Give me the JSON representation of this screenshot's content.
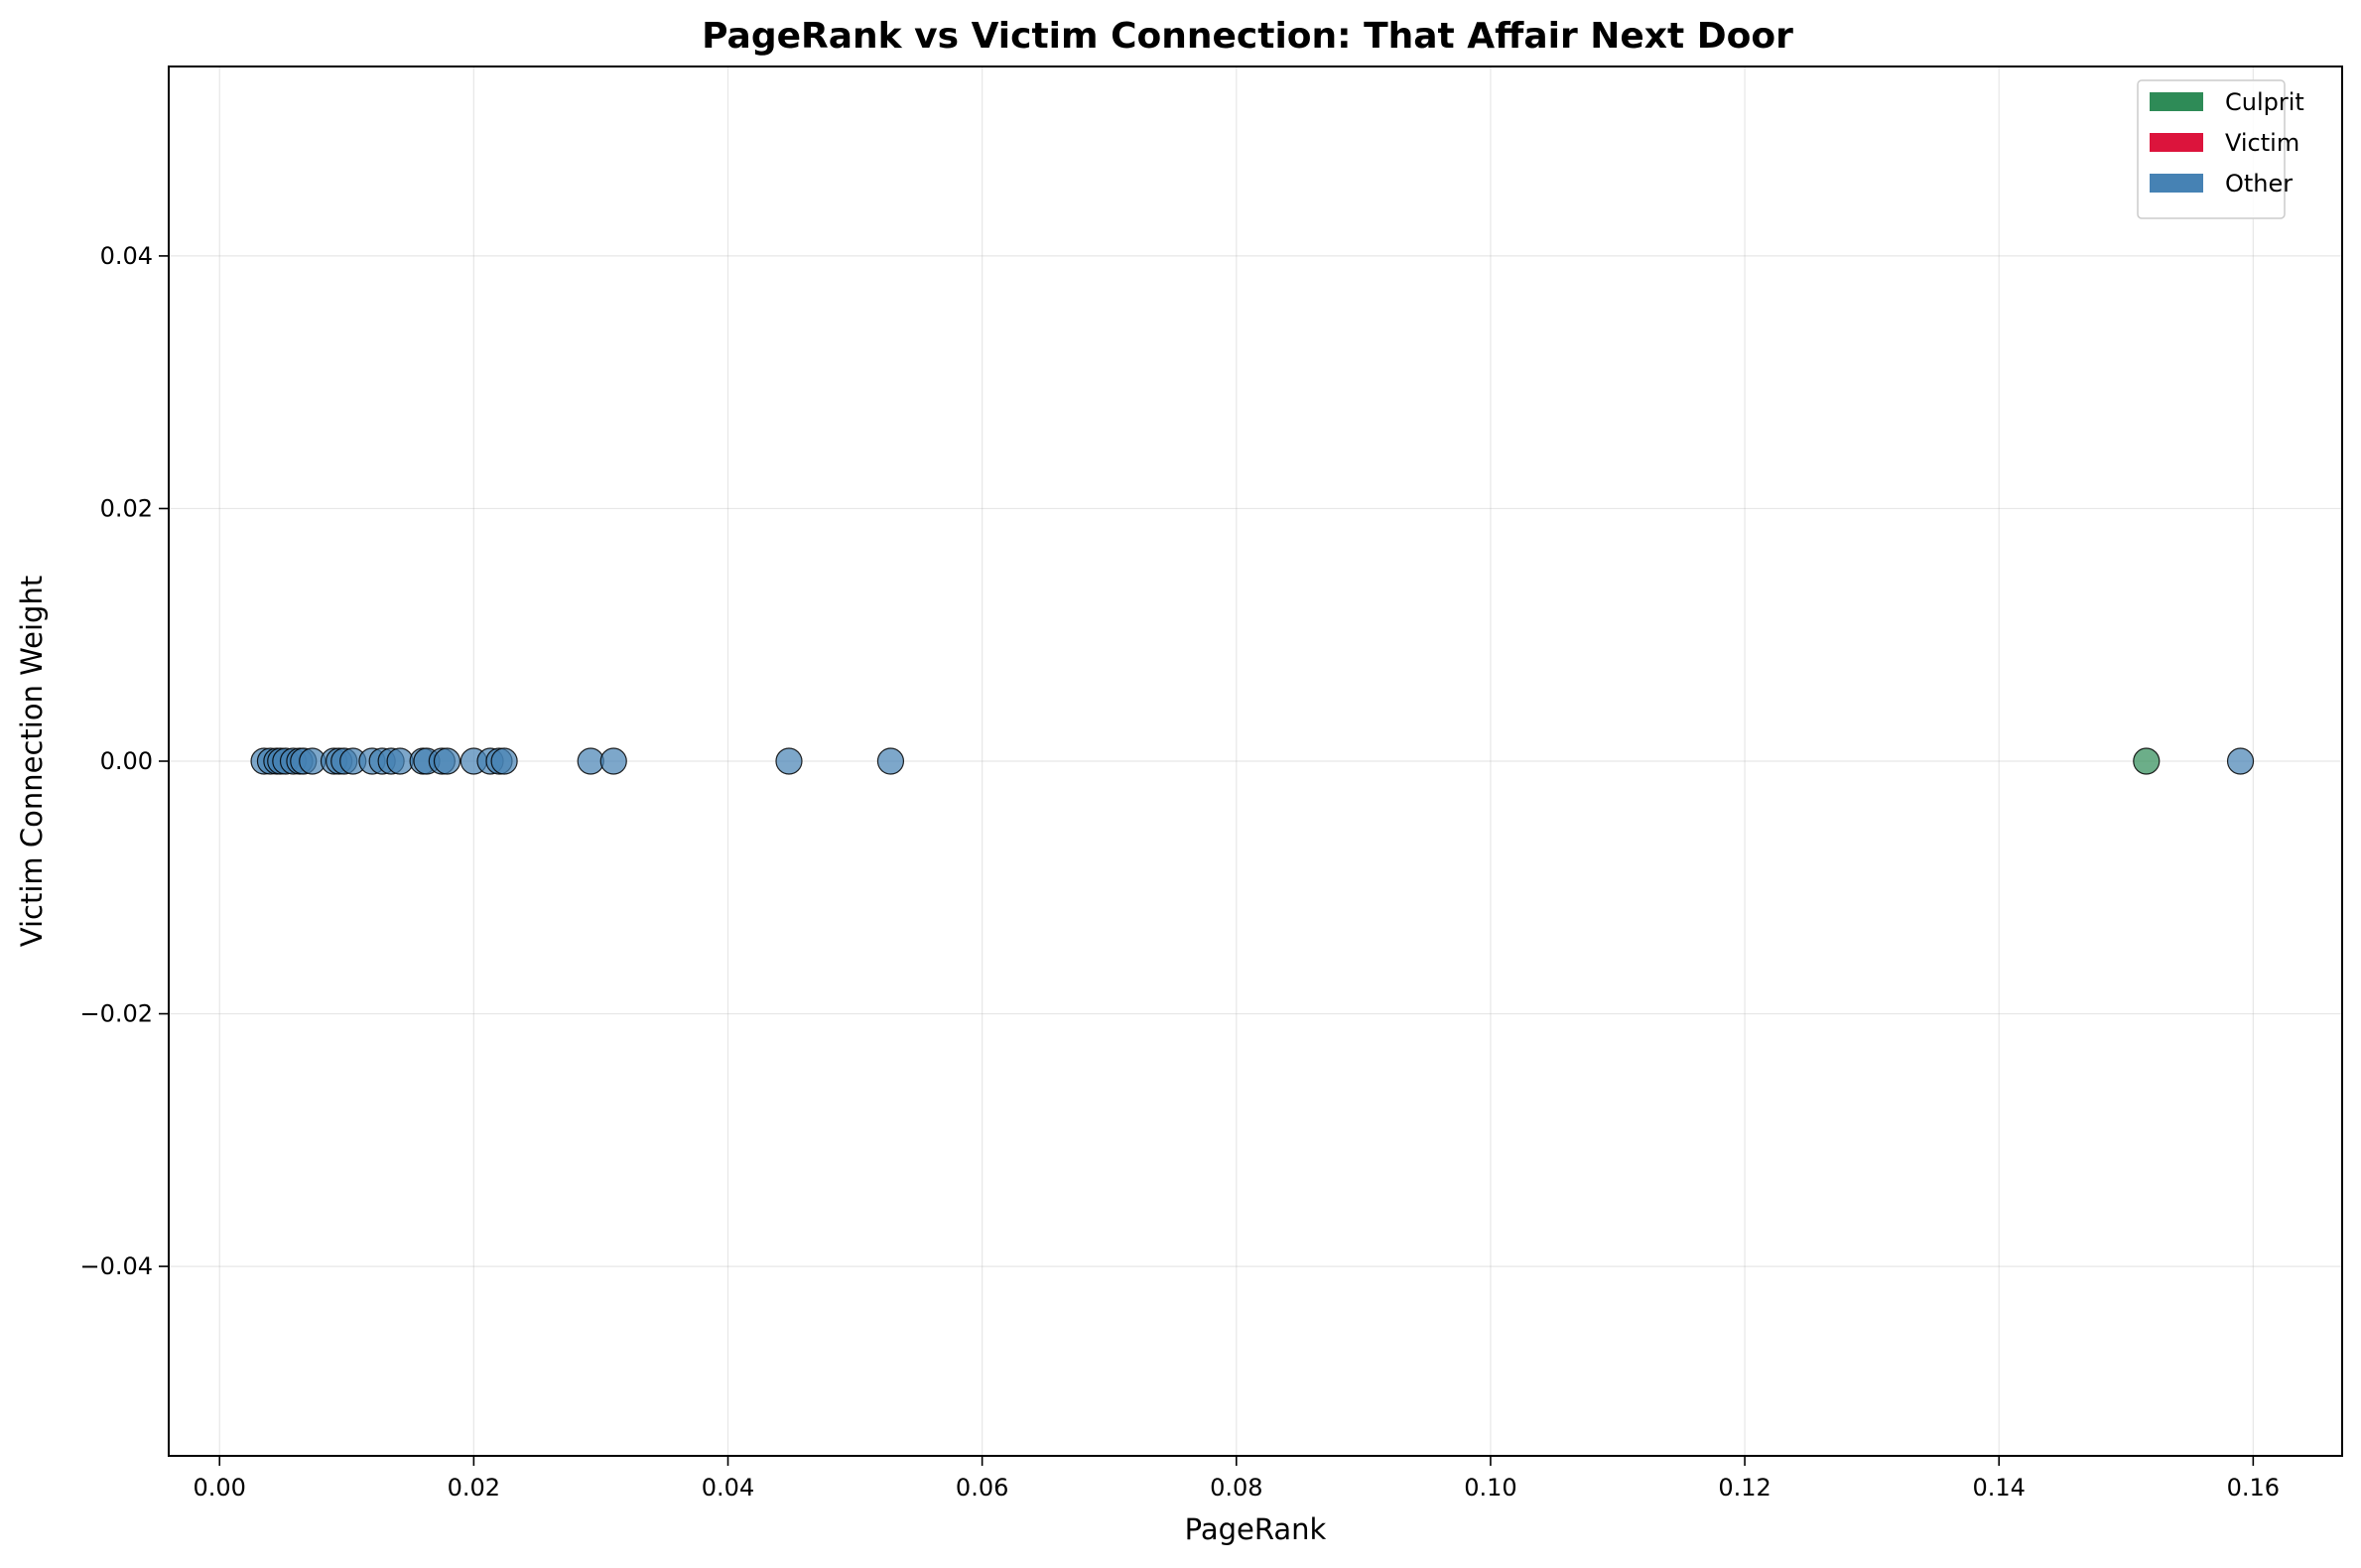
{
  "chart_data": {
    "type": "scatter",
    "title": "PageRank vs Victim Connection: That Affair Next Door",
    "xlabel": "PageRank",
    "ylabel": "Victim Connection Weight",
    "xlim": [
      -0.004,
      0.167
    ],
    "ylim": [
      -0.055,
      0.055
    ],
    "xticks": [
      0.0,
      0.02,
      0.04,
      0.06,
      0.08,
      0.1,
      0.12,
      0.14,
      0.16
    ],
    "xtick_labels": [
      "0.00",
      "0.02",
      "0.04",
      "0.06",
      "0.08",
      "0.10",
      "0.12",
      "0.14",
      "0.16"
    ],
    "yticks": [
      -0.04,
      -0.02,
      0.0,
      0.02,
      0.04
    ],
    "ytick_labels": [
      "−0.04",
      "−0.02",
      "0.00",
      "0.02",
      "0.04"
    ],
    "grid": true,
    "legend_position": "top-right",
    "legend": [
      {
        "label": "Culprit",
        "color": "#2e8b57"
      },
      {
        "label": "Victim",
        "color": "#dc143c"
      },
      {
        "label": "Other",
        "color": "#4682b4"
      }
    ],
    "series": [
      {
        "name": "Culprit",
        "color": "#2e8b57",
        "points": [
          {
            "x": 0.1516,
            "y": 0.0
          }
        ]
      },
      {
        "name": "Victim",
        "color": "#dc143c",
        "points": []
      },
      {
        "name": "Other",
        "color": "#4682b4",
        "points": [
          {
            "x": 0.0035,
            "y": 0.0
          },
          {
            "x": 0.004,
            "y": 0.0
          },
          {
            "x": 0.0045,
            "y": 0.0
          },
          {
            "x": 0.0048,
            "y": 0.0
          },
          {
            "x": 0.0052,
            "y": 0.0
          },
          {
            "x": 0.0058,
            "y": 0.0
          },
          {
            "x": 0.0063,
            "y": 0.0
          },
          {
            "x": 0.0066,
            "y": 0.0
          },
          {
            "x": 0.0073,
            "y": 0.0
          },
          {
            "x": 0.009,
            "y": 0.0
          },
          {
            "x": 0.0094,
            "y": 0.0
          },
          {
            "x": 0.0098,
            "y": 0.0
          },
          {
            "x": 0.0105,
            "y": 0.0
          },
          {
            "x": 0.012,
            "y": 0.0
          },
          {
            "x": 0.0128,
            "y": 0.0
          },
          {
            "x": 0.0135,
            "y": 0.0
          },
          {
            "x": 0.0142,
            "y": 0.0
          },
          {
            "x": 0.016,
            "y": 0.0
          },
          {
            "x": 0.0163,
            "y": 0.0
          },
          {
            "x": 0.0175,
            "y": 0.0
          },
          {
            "x": 0.0179,
            "y": 0.0
          },
          {
            "x": 0.02,
            "y": 0.0
          },
          {
            "x": 0.0213,
            "y": 0.0
          },
          {
            "x": 0.022,
            "y": 0.0
          },
          {
            "x": 0.0224,
            "y": 0.0
          },
          {
            "x": 0.0292,
            "y": 0.0
          },
          {
            "x": 0.031,
            "y": 0.0
          },
          {
            "x": 0.0448,
            "y": 0.0
          },
          {
            "x": 0.0528,
            "y": 0.0
          },
          {
            "x": 0.159,
            "y": 0.0
          }
        ]
      }
    ]
  }
}
